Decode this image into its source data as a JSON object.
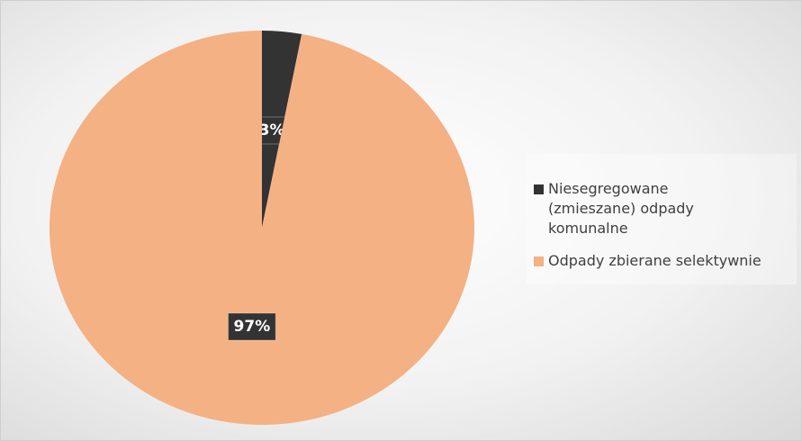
{
  "chart_data": {
    "type": "pie",
    "categories": [
      "Niesegregowane (zmieszane) odpady komunalne",
      "Odpady zbierane selektywnie"
    ],
    "values": [
      3,
      97
    ],
    "value_labels": [
      "3%",
      "97%"
    ],
    "colors": [
      "#333333",
      "#f4b183"
    ],
    "legend": "right"
  }
}
